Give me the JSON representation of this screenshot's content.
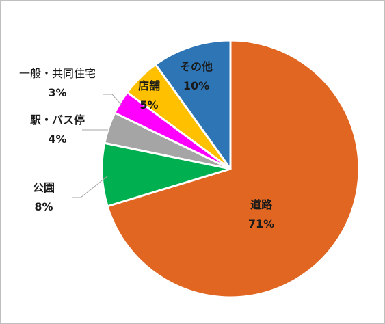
{
  "chart_data": {
    "type": "pie",
    "title": "",
    "slices": [
      {
        "label": "道路",
        "value": 71,
        "value_label": "71%",
        "color": "#e06621"
      },
      {
        "label": "公園",
        "value": 8,
        "value_label": "8%",
        "color": "#00b050"
      },
      {
        "label": "駅・バス停",
        "value": 4,
        "value_label": "4%",
        "color": "#a5a5a5"
      },
      {
        "label": "一般・共同住宅",
        "value": 3,
        "value_label": "3%",
        "color": "#ff00ff"
      },
      {
        "label": "店舗",
        "value": 5,
        "value_label": "5%",
        "color": "#ffc000"
      },
      {
        "label": "その他",
        "value": 10,
        "value_label": "10%",
        "color": "#2e75b6"
      }
    ],
    "legend": "none",
    "start_angle": "12 o'clock",
    "direction": "clockwise"
  }
}
